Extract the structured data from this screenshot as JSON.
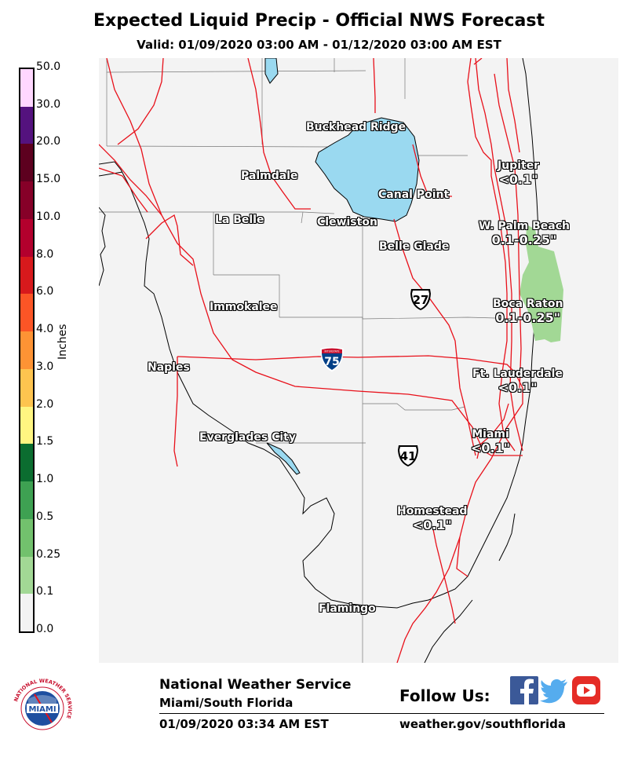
{
  "header": {
    "title": "Expected Liquid Precip - Official NWS Forecast",
    "subtitle": "Valid: 01/09/2020 03:00 AM - 01/12/2020 03:00 AM EST"
  },
  "legend": {
    "axis_label": "Inches",
    "levels": [
      {
        "label": "0.0",
        "color": "#f3f3f3"
      },
      {
        "label": "0.1",
        "color": "#a2d895"
      },
      {
        "label": "0.25",
        "color": "#72c16d"
      },
      {
        "label": "0.5",
        "color": "#3ea152"
      },
      {
        "label": "1.0",
        "color": "#0b6d30"
      },
      {
        "label": "1.5",
        "color": "#fff581"
      },
      {
        "label": "2.0",
        "color": "#fec44f"
      },
      {
        "label": "3.0",
        "color": "#fe9334"
      },
      {
        "label": "4.0",
        "color": "#fb5526"
      },
      {
        "label": "6.0",
        "color": "#d7191c"
      },
      {
        "label": "8.0",
        "color": "#b3002d"
      },
      {
        "label": "10.0",
        "color": "#860028"
      },
      {
        "label": "15.0",
        "color": "#5d001f"
      },
      {
        "label": "20.0",
        "color": "#380c3a"
      },
      {
        "label": "30.0",
        "color": "#54127e"
      },
      {
        "label": "50.0",
        "color": "#ffd7ff"
      }
    ]
  },
  "map": {
    "cities": [
      {
        "name": "Buckhead Ridge"
      },
      {
        "name": "Palmdale"
      },
      {
        "name": "Canal Point"
      },
      {
        "name": "La Belle"
      },
      {
        "name": "Clewiston"
      },
      {
        "name": "Belle Glade"
      },
      {
        "name": "Immokalee"
      },
      {
        "name": "Naples"
      },
      {
        "name": "Everglades City"
      },
      {
        "name": "Flamingo"
      }
    ],
    "forecasts": [
      {
        "name": "Jupiter",
        "amount": "<0.1\""
      },
      {
        "name": "W. Palm Beach",
        "amount": "0.1-0.25\""
      },
      {
        "name": "Boca Raton",
        "amount": "0.1-0.25\""
      },
      {
        "name": "Ft. Lauderdale",
        "amount": "<0.1\""
      },
      {
        "name": "Miami",
        "amount": "<0.1\""
      },
      {
        "name": "Homestead",
        "amount": "<0.1\""
      }
    ],
    "routes": {
      "us27": "27",
      "us41": "41",
      "i75": "75",
      "i75_top": "INTERSTATE"
    },
    "colors": {
      "water": "#9ad9f0",
      "roads": "#e8101a",
      "land": "#f3f3f3",
      "precip": "#a2d895"
    }
  },
  "footer": {
    "org": "National Weather Service",
    "office": "Miami/South Florida",
    "issued": "01/09/2020 03:34 AM EST",
    "follow_label": "Follow Us:",
    "website": "weather.gov/southflorida",
    "logo_ring_text": "NATIONAL WEATHER SERVICE",
    "logo_center_text": "MIAMI",
    "social": [
      "facebook-icon",
      "twitter-icon",
      "youtube-icon"
    ],
    "youtube_color": "#e52d27",
    "facebook_color": "#3b5998",
    "twitter_color": "#55acee"
  }
}
